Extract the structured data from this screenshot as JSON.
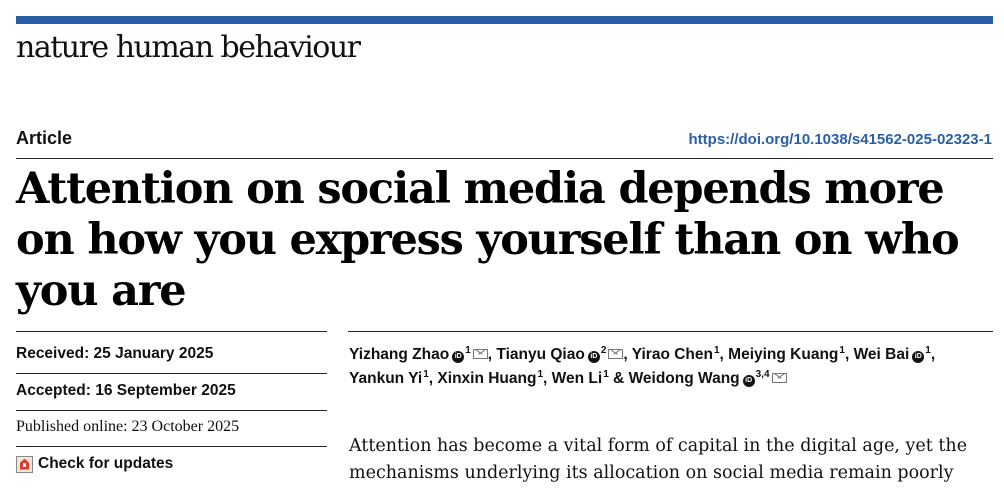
{
  "journal": {
    "name": "nature human behaviour",
    "accent_color": "#2a5fa6"
  },
  "article": {
    "type": "Article",
    "doi": "https://doi.org/10.1038/s41562-025-02323-1",
    "title": "Attention on social media depends more on how you express yourself than on who you are"
  },
  "dates": {
    "received": "Received: 25 January 2025",
    "accepted": "Accepted: 16 September 2025",
    "published": "Published online: 23 October 2025"
  },
  "check_updates": {
    "label": "Check for updates",
    "icon": "check-for-updates-icon"
  },
  "authors": [
    {
      "name": "Yizhang Zhao",
      "aff": "1",
      "orcid": true,
      "mail": true
    },
    {
      "name": "Tianyu Qiao",
      "aff": "2",
      "orcid": true,
      "mail": true
    },
    {
      "name": "Yirao Chen",
      "aff": "1"
    },
    {
      "name": "Meiying Kuang",
      "aff": "1"
    },
    {
      "name": "Wei Bai",
      "aff": "1",
      "orcid": true
    },
    {
      "name": "Yankun Yi",
      "aff": "1"
    },
    {
      "name": "Xinxin Huang",
      "aff": "1"
    },
    {
      "name": "Wen Li",
      "aff": "1"
    },
    {
      "name": "Weidong Wang",
      "aff": "3,4",
      "orcid": true,
      "mail": true
    }
  ],
  "author_separators": [
    ", ",
    ", ",
    ", ",
    ", ",
    ",",
    ", ",
    ", ",
    " & ",
    ""
  ],
  "abstract": "Attention has become a vital form of capital in the digital age, yet the mechanisms underlying its allocation on social media remain poorly"
}
